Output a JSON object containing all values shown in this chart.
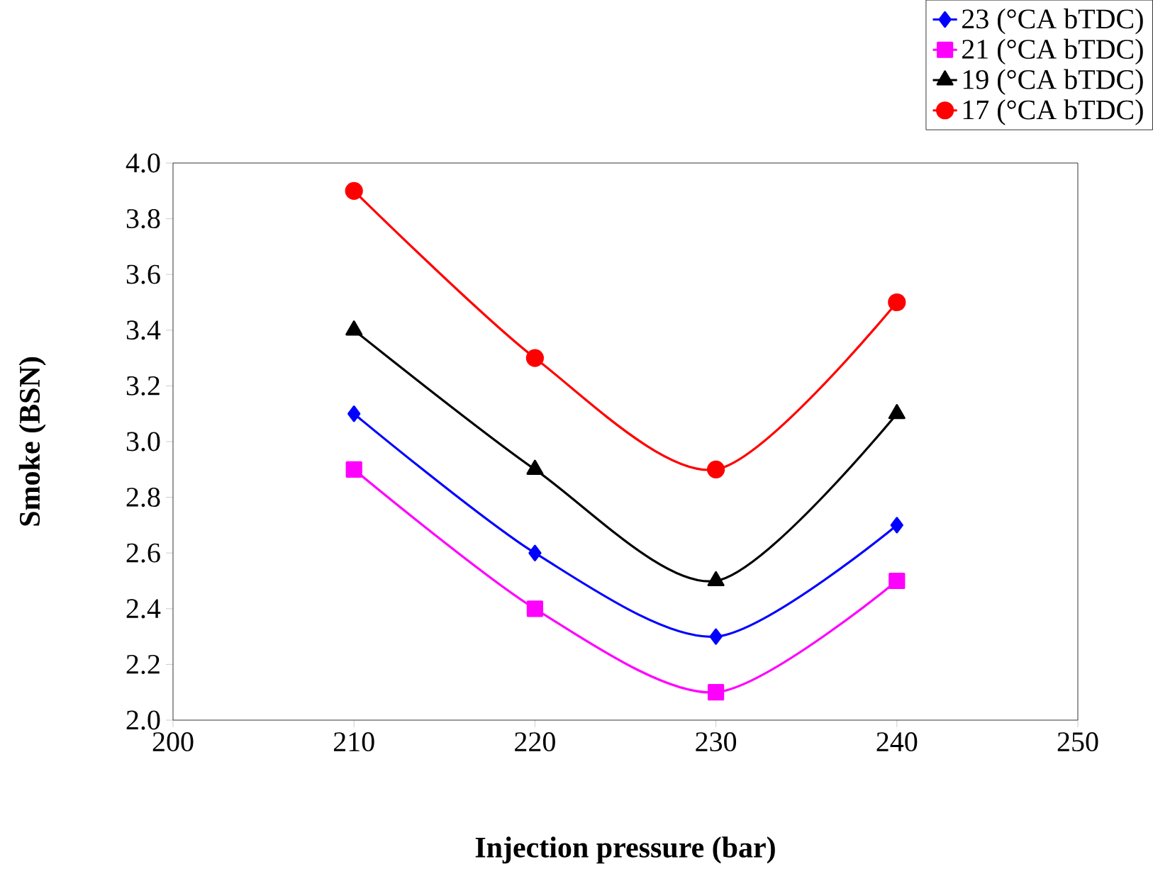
{
  "chart_data": {
    "type": "line",
    "xlabel": "Injection pressure (bar)",
    "ylabel": "Smoke (BSN)",
    "x": [
      210,
      220,
      230,
      240
    ],
    "series": [
      {
        "name": "23 (°CA bTDC)",
        "color": "#0000ff",
        "marker": "diamond",
        "values": [
          3.1,
          2.6,
          2.3,
          2.7
        ]
      },
      {
        "name": "21 (°CA bTDC)",
        "color": "#ff00ff",
        "marker": "square",
        "values": [
          2.9,
          2.4,
          2.1,
          2.5
        ]
      },
      {
        "name": "19 (°CA bTDC)",
        "color": "#000000",
        "marker": "triangle",
        "values": [
          3.4,
          2.9,
          2.5,
          3.1
        ]
      },
      {
        "name": "17 (°CA bTDC)",
        "color": "#ff0000",
        "marker": "circle",
        "values": [
          3.9,
          3.3,
          2.9,
          3.5
        ]
      }
    ],
    "xlim": [
      200,
      250
    ],
    "xticks": [
      200,
      210,
      220,
      230,
      240,
      250
    ],
    "ylim": [
      2.0,
      4.0
    ],
    "yticks": [
      {
        "value": 2.0,
        "label": "2.0"
      },
      {
        "value": 2.2,
        "label": "2.2"
      },
      {
        "value": 2.4,
        "label": "2.4"
      },
      {
        "value": 2.6,
        "label": "2.6"
      },
      {
        "value": 2.8,
        "label": "2.8"
      },
      {
        "value": 3.0,
        "label": "3.0"
      },
      {
        "value": 3.2,
        "label": "3.2"
      },
      {
        "value": 3.4,
        "label": "3.4"
      },
      {
        "value": 3.6,
        "label": "3.6"
      },
      {
        "value": 3.8,
        "label": "3.8"
      },
      {
        "value": 4.0,
        "label": "4.0"
      }
    ],
    "legend": "top right",
    "line_style": "solid",
    "grid": false
  }
}
